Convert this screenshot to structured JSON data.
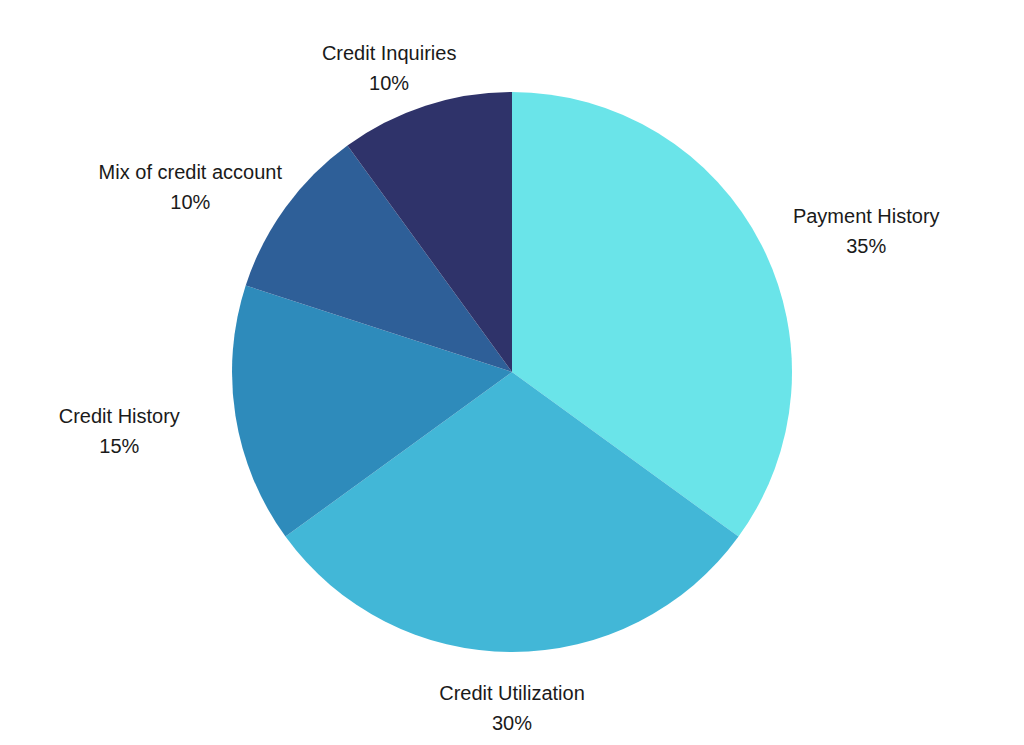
{
  "chart_data": {
    "type": "pie",
    "categories": [
      "Payment History",
      "Credit Utilization",
      "Credit History",
      "Mix of credit account",
      "Credit Inquiries"
    ],
    "values": [
      35,
      30,
      15,
      10,
      10
    ],
    "value_labels": [
      "35%",
      "30%",
      "15%",
      "10%",
      "10%"
    ],
    "colors": [
      "#6ae4e9",
      "#42b7d7",
      "#2e8bbb",
      "#2e5f98",
      "#2f336a"
    ],
    "data_labels": true
  }
}
